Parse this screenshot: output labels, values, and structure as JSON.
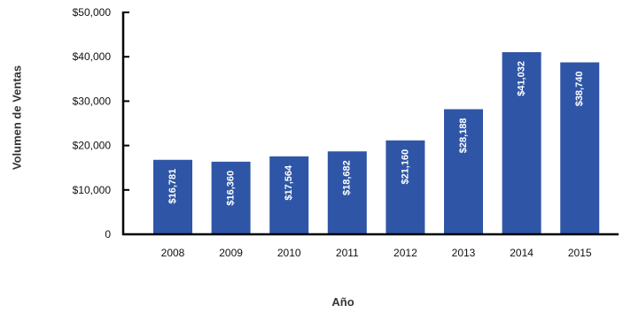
{
  "chart_data": {
    "type": "bar",
    "title": "",
    "xlabel": "Año",
    "ylabel": "Volumen de Ventas",
    "categories": [
      "2008",
      "2009",
      "2010",
      "2011",
      "2012",
      "2013",
      "2014",
      "2015"
    ],
    "values": [
      16781,
      16360,
      17564,
      18682,
      21160,
      28188,
      41032,
      38740
    ],
    "data_labels": [
      "$16,781",
      "$16,360",
      "$17,564",
      "$18,682",
      "$21,160",
      "$28,188",
      "$41,032",
      "$38,740"
    ],
    "ylim": [
      0,
      50000
    ],
    "yticks": [
      0,
      10000,
      20000,
      30000,
      40000,
      50000
    ],
    "ytick_labels": [
      "0",
      "$10,000",
      "$20,000",
      "$30,000",
      "$40,000",
      "$50,000"
    ],
    "grid": false,
    "legend": "none",
    "colors": {
      "bar": "#2f56a6",
      "axis": "#000000",
      "bar_label": "#ffffff"
    }
  }
}
